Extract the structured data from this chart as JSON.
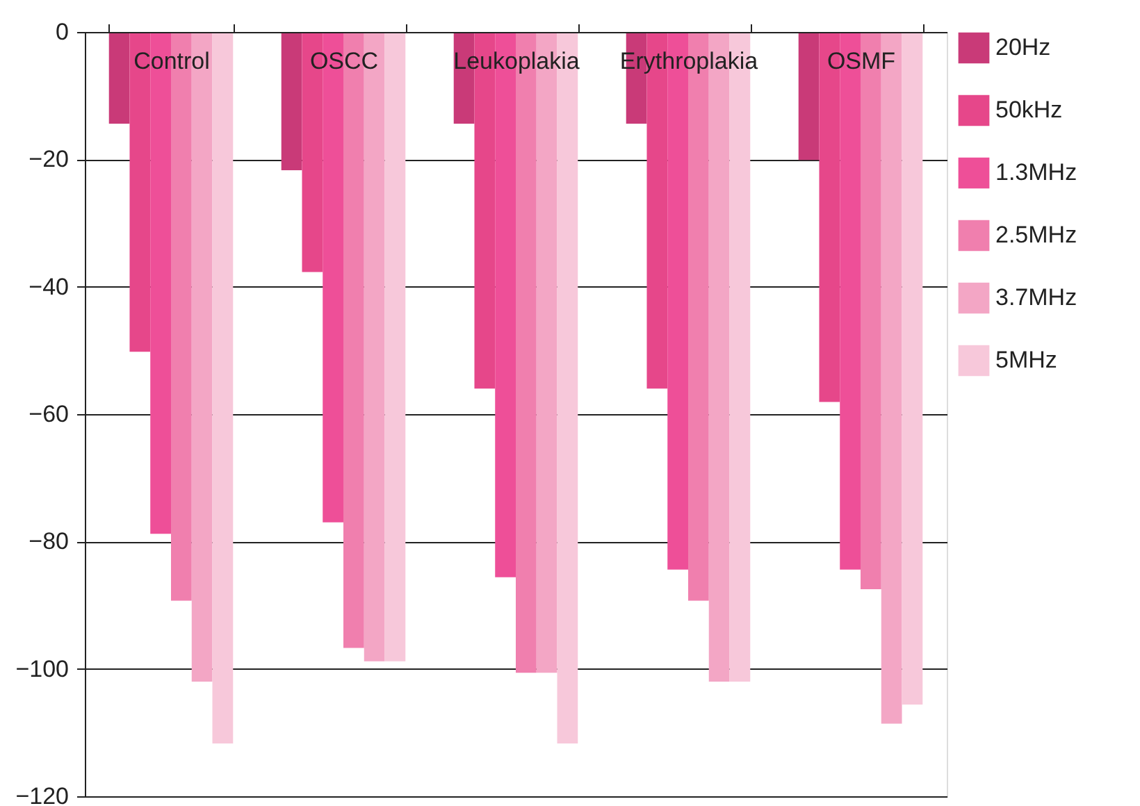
{
  "chart_data": {
    "type": "bar",
    "categories": [
      "Control",
      "OSCC",
      "Leukoplakia",
      "Erythroplakia",
      "OSMF"
    ],
    "series": [
      {
        "name": "20Hz",
        "color": "#c93a78",
        "values": [
          -14.4,
          -21.7,
          -14.4,
          -14.4,
          -20.1
        ]
      },
      {
        "name": "50kHz",
        "color": "#e6478a",
        "values": [
          -50.2,
          -37.7,
          -56.0,
          -56.0,
          -58.1
        ]
      },
      {
        "name": "1.3MHz",
        "color": "#ee4f98",
        "values": [
          -78.8,
          -77.0,
          -85.6,
          -84.4,
          -84.4
        ]
      },
      {
        "name": "2.5MHz",
        "color": "#f07fae",
        "values": [
          -89.3,
          -96.7,
          -100.6,
          -89.3,
          -87.5
        ]
      },
      {
        "name": "3.7MHz",
        "color": "#f3a6c5",
        "values": [
          -102.0,
          -98.8,
          -100.6,
          -102.0,
          -108.6
        ]
      },
      {
        "name": "5MHz",
        "color": "#f7c8da",
        "values": [
          -111.7,
          -98.8,
          -111.7,
          -102.0,
          -105.6
        ]
      }
    ],
    "ylim": [
      -120,
      0
    ],
    "yticks": [
      -120,
      -100,
      -80,
      -60,
      -40,
      -20,
      0
    ],
    "grid": "y",
    "legend": "right"
  }
}
